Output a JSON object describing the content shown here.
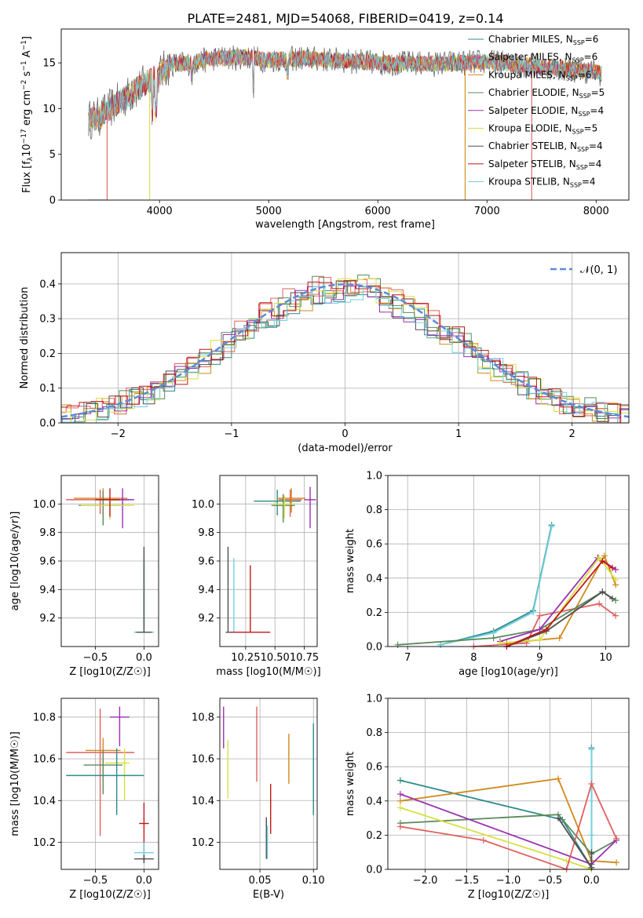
{
  "figure": {
    "title": "PLATE=2481, MJD=54068, FIBERID=0419, z=0.14"
  },
  "models": [
    {
      "name": "Chabrier MILES, N",
      "sub": "SSP",
      "tail": "=6",
      "color": "#2e8b8b"
    },
    {
      "name": "Salpeter MILES, N",
      "sub": "SSP",
      "tail": "=6",
      "color": "#e06060"
    },
    {
      "name": "Kroupa MILES, N",
      "sub": "SSP",
      "tail": "=6",
      "color": "#d08a1a"
    },
    {
      "name": "Chabrier ELODIE, N",
      "sub": "SSP",
      "tail": "=5",
      "color": "#5a8a5a"
    },
    {
      "name": "Salpeter ELODIE, N",
      "sub": "SSP",
      "tail": "=4",
      "color": "#9a30b0"
    },
    {
      "name": "Kroupa ELODIE, N",
      "sub": "SSP",
      "tail": "=5",
      "color": "#d8e040"
    },
    {
      "name": "Chabrier STELIB, N",
      "sub": "SSP",
      "tail": "=4",
      "color": "#505050"
    },
    {
      "name": "Salpeter STELIB, N",
      "sub": "SSP",
      "tail": "=4",
      "color": "#c01818"
    },
    {
      "name": "Kroupa STELIB, N",
      "sub": "SSP",
      "tail": "=4",
      "color": "#70d0e0"
    }
  ],
  "chart_data": [
    {
      "id": "spectrum",
      "type": "line",
      "title": "PLATE=2481, MJD=54068, FIBERID=0419, z=0.14",
      "xlabel": "wavelength [Angstrom, rest frame]",
      "ylabel": "Flux [f_λ 10^-17 erg cm^-2 s^-1 A^-1]",
      "xlim": [
        3100,
        8300
      ],
      "ylim": [
        0,
        18.7
      ],
      "xticks": [
        "4000",
        "5000",
        "6000",
        "7000",
        "8000"
      ],
      "yticks": [
        "0",
        "5",
        "10",
        "15"
      ],
      "continuum": {
        "x": [
          3350,
          3450,
          3600,
          3700,
          3800,
          3900,
          4000,
          4100,
          4300,
          4500,
          4800,
          5000,
          5300,
          5600,
          6000,
          6500,
          7000,
          7500,
          8000,
          8050
        ],
        "y": [
          8.8,
          9.1,
          10.5,
          11.3,
          12.2,
          13.0,
          13.8,
          14.8,
          15.0,
          15.5,
          15.6,
          15.3,
          15.5,
          15.3,
          15.0,
          14.9,
          15.1,
          14.6,
          14.0,
          13.8
        ]
      },
      "drops": [
        {
          "model": 1,
          "x": 3520
        },
        {
          "model": 5,
          "x": 3910
        },
        {
          "model": 2,
          "x": 6800
        },
        {
          "model": 1,
          "x": 7410
        }
      ]
    },
    {
      "id": "residuals",
      "type": "histogram",
      "xlabel": "(data-model)/error",
      "ylabel": "Normed distribution",
      "xlim": [
        -2.5,
        2.5
      ],
      "ylim": [
        0,
        0.49
      ],
      "xticks": [
        "−2",
        "−1",
        "0",
        "1",
        "2"
      ],
      "yticks": [
        "0.0",
        "0.1",
        "0.2",
        "0.3",
        "0.4"
      ],
      "gaussian_label": "𝒩(0, 1)",
      "gaussian_color": "#5b8bd8"
    },
    {
      "id": "age-Z",
      "type": "errorbar",
      "xlabel": "Z [log10(Z/Z☉)]",
      "ylabel": "age  [log10(age/yr)]",
      "xlim": [
        -0.85,
        0.15
      ],
      "ylim": [
        9.0,
        10.2
      ],
      "xticks": [
        {
          "v": -0.5,
          "t": "−0.5"
        },
        {
          "v": 0.0,
          "t": "0.0"
        }
      ],
      "yticks": [
        {
          "v": 9.2,
          "t": "9.2"
        },
        {
          "v": 9.4,
          "t": "9.4"
        },
        {
          "v": 9.6,
          "t": "9.6"
        },
        {
          "v": 9.8,
          "t": "9.8"
        },
        {
          "v": 10.0,
          "t": "10.0"
        }
      ],
      "points": [
        {
          "model": 0,
          "x": 0.0,
          "y": 9.1,
          "xerr": [
            0.1,
            0.1
          ],
          "yerr": [
            0.0,
            0.5
          ]
        },
        {
          "model": 8,
          "x": 0.0,
          "y": 9.1,
          "xerr": [
            0.1,
            0.1
          ],
          "yerr": [
            0.0,
            0.55
          ]
        },
        {
          "model": 6,
          "x": 0.0,
          "y": 9.1,
          "xerr": [
            0.08,
            0.08
          ],
          "yerr": [
            0.0,
            0.6
          ]
        },
        {
          "model": 1,
          "x": -0.45,
          "y": 10.03,
          "xerr": [
            0.35,
            0.3
          ],
          "yerr": [
            0.1,
            0.07
          ]
        },
        {
          "model": 2,
          "x": -0.42,
          "y": 10.04,
          "xerr": [
            0.3,
            0.25
          ],
          "yerr": [
            0.12,
            0.07
          ]
        },
        {
          "model": 3,
          "x": -0.42,
          "y": 9.99,
          "xerr": [
            0.25,
            0.2
          ],
          "yerr": [
            0.14,
            0.1
          ]
        },
        {
          "model": 4,
          "x": -0.22,
          "y": 10.03,
          "xerr": [
            0.12,
            0.12
          ],
          "yerr": [
            0.2,
            0.08
          ]
        },
        {
          "model": 5,
          "x": -0.35,
          "y": 9.99,
          "xerr": [
            0.3,
            0.25
          ],
          "yerr": [
            0.1,
            0.06
          ]
        },
        {
          "model": 7,
          "x": -0.35,
          "y": 10.03,
          "xerr": [
            0.15,
            0.1
          ],
          "yerr": [
            0.12,
            0.08
          ]
        }
      ]
    },
    {
      "id": "age-mass",
      "type": "errorbar",
      "xlabel": "mass [log10(M/M☉)]",
      "ylabel": "",
      "xlim": [
        0.03,
        0.86
      ],
      "ylim": [
        9.0,
        10.2
      ],
      "xticks": [
        {
          "v": 0.25,
          "t": "10.25"
        },
        {
          "v": 0.5,
          "t": "10.50"
        },
        {
          "v": 0.75,
          "t": "10.75"
        }
      ],
      "yticks": [
        {
          "v": 9.2,
          "t": "9.2"
        },
        {
          "v": 9.4,
          "t": "9.4"
        },
        {
          "v": 9.6,
          "t": "9.6"
        },
        {
          "v": 9.8,
          "t": "9.8"
        },
        {
          "v": 10.0,
          "t": "10.0"
        }
      ],
      "points": [
        {
          "model": 6,
          "x": 0.1,
          "y": 9.1,
          "xerr": [
            0.02,
            0.02
          ],
          "yerr": [
            0.0,
            0.6
          ]
        },
        {
          "model": 8,
          "x": 0.15,
          "y": 9.1,
          "xerr": [
            0.03,
            0.03
          ],
          "yerr": [
            0.0,
            0.52
          ]
        },
        {
          "model": 7,
          "x": 0.29,
          "y": 9.1,
          "xerr": [
            0.17,
            0.17
          ],
          "yerr": [
            0.0,
            0.47
          ]
        },
        {
          "model": 0,
          "x": 0.52,
          "y": 10.02,
          "xerr": [
            0.2,
            0.2
          ],
          "yerr": [
            0.1,
            0.08
          ]
        },
        {
          "model": 1,
          "x": 0.63,
          "y": 10.03,
          "xerr": [
            0.1,
            0.1
          ],
          "yerr": [
            0.12,
            0.07
          ]
        },
        {
          "model": 2,
          "x": 0.64,
          "y": 10.04,
          "xerr": [
            0.12,
            0.12
          ],
          "yerr": [
            0.1,
            0.07
          ]
        },
        {
          "model": 3,
          "x": 0.57,
          "y": 9.99,
          "xerr": [
            0.1,
            0.1
          ],
          "yerr": [
            0.12,
            0.08
          ]
        },
        {
          "model": 4,
          "x": 0.8,
          "y": 10.03,
          "xerr": [
            0.05,
            0.05
          ],
          "yerr": [
            0.2,
            0.09
          ]
        },
        {
          "model": 5,
          "x": 0.58,
          "y": 10.0,
          "xerr": [
            0.1,
            0.1
          ],
          "yerr": [
            0.1,
            0.06
          ]
        }
      ]
    },
    {
      "id": "weight-age",
      "type": "line",
      "xlabel": "age  [log10(age/yr)]",
      "ylabel": "mass weight",
      "xlim": [
        6.7,
        10.35
      ],
      "ylim": [
        0,
        1
      ],
      "xticks": [
        {
          "v": 7,
          "t": "7"
        },
        {
          "v": 8,
          "t": "8"
        },
        {
          "v": 9,
          "t": "9"
        },
        {
          "v": 10,
          "t": "10"
        }
      ],
      "yticks": [
        {
          "v": 0,
          "t": "0.0"
        },
        {
          "v": 0.2,
          "t": "0.2"
        },
        {
          "v": 0.4,
          "t": "0.4"
        },
        {
          "v": 0.6,
          "t": "0.6"
        },
        {
          "v": 0.8,
          "t": "0.8"
        },
        {
          "v": 1,
          "t": "1.0"
        }
      ],
      "series": [
        {
          "model": 0,
          "x": [
            7.5,
            8.3,
            8.9,
            9.18
          ],
          "y": [
            0.01,
            0.09,
            0.21,
            0.71
          ]
        },
        {
          "model": 8,
          "x": [
            7.5,
            8.3,
            8.9,
            9.18
          ],
          "y": [
            0.01,
            0.08,
            0.2,
            0.7
          ]
        },
        {
          "model": 1,
          "x": [
            8.0,
            8.8,
            9.0,
            9.9,
            10.15
          ],
          "y": [
            0.0,
            0.02,
            0.18,
            0.25,
            0.18
          ]
        },
        {
          "model": 2,
          "x": [
            8.5,
            9.3,
            9.98,
            10.15
          ],
          "y": [
            0.02,
            0.05,
            0.53,
            0.36
          ]
        },
        {
          "model": 3,
          "x": [
            6.85,
            8.3,
            9.0,
            9.95,
            10.15
          ],
          "y": [
            0.01,
            0.05,
            0.1,
            0.32,
            0.27
          ]
        },
        {
          "model": 4,
          "x": [
            8.4,
            9.0,
            9.88,
            10.15
          ],
          "y": [
            0.03,
            0.1,
            0.52,
            0.45
          ]
        },
        {
          "model": 5,
          "x": [
            8.4,
            9.0,
            9.9,
            10.15
          ],
          "y": [
            0.02,
            0.04,
            0.52,
            0.39
          ]
        },
        {
          "model": 6,
          "x": [
            8.5,
            9.1,
            9.95,
            10.1
          ],
          "y": [
            0.0,
            0.09,
            0.32,
            0.28
          ]
        },
        {
          "model": 7,
          "x": [
            8.5,
            9.1,
            9.95,
            10.1
          ],
          "y": [
            0.0,
            0.1,
            0.5,
            0.46
          ]
        }
      ]
    },
    {
      "id": "mass-Z",
      "type": "errorbar",
      "xlabel": "Z [log10(Z/Z☉)]",
      "ylabel": "mass [log10(M/M☉)]",
      "xlim": [
        -0.85,
        0.15
      ],
      "ylim": [
        10.07,
        10.89
      ],
      "xticks": [
        {
          "v": -0.5,
          "t": "−0.5"
        },
        {
          "v": 0.0,
          "t": "0.0"
        }
      ],
      "yticks": [
        {
          "v": 10.2,
          "t": "10.2"
        },
        {
          "v": 10.4,
          "t": "10.4"
        },
        {
          "v": 10.6,
          "t": "10.6"
        },
        {
          "v": 10.8,
          "t": "10.8"
        }
      ],
      "points": [
        {
          "model": 4,
          "x": -0.25,
          "y": 10.8,
          "xerr": [
            0.1,
            0.1
          ],
          "yerr": [
            0.14,
            0.05
          ]
        },
        {
          "model": 1,
          "x": -0.45,
          "y": 10.63,
          "xerr": [
            0.35,
            0.35
          ],
          "yerr": [
            0.4,
            0.21
          ]
        },
        {
          "model": 2,
          "x": -0.42,
          "y": 10.64,
          "xerr": [
            0.18,
            0.18
          ],
          "yerr": [
            0.15,
            0.06
          ]
        },
        {
          "model": 3,
          "x": -0.42,
          "y": 10.57,
          "xerr": [
            0.2,
            0.2
          ],
          "yerr": [
            0.14,
            0.07
          ]
        },
        {
          "model": 5,
          "x": -0.2,
          "y": 10.58,
          "xerr": [
            0.2,
            0.05
          ],
          "yerr": [
            0.18,
            0.07
          ]
        },
        {
          "model": 0,
          "x": -0.4,
          "y": 10.52,
          "xerr": [
            0.4,
            0.4
          ],
          "yerr": [
            0.0,
            0.0
          ]
        },
        {
          "model": 0,
          "x": -0.28,
          "y": 10.55,
          "xerr": [
            0.0,
            0.0
          ],
          "yerr": [
            0.22,
            0.1
          ]
        },
        {
          "model": 7,
          "x": 0.0,
          "y": 10.29,
          "xerr": [
            0.05,
            0.05
          ],
          "yerr": [
            0.18,
            0.1
          ]
        },
        {
          "model": 8,
          "x": 0.0,
          "y": 10.15,
          "xerr": [
            0.1,
            0.1
          ],
          "yerr": [
            0.05,
            0.05
          ]
        },
        {
          "model": 6,
          "x": 0.0,
          "y": 10.12,
          "xerr": [
            0.1,
            0.1
          ],
          "yerr": [
            0.02,
            0.02
          ]
        }
      ]
    },
    {
      "id": "mass-EBV",
      "type": "errorbar",
      "xlabel": "E(B-V)",
      "ylabel": "",
      "xlim": [
        0.0125,
        0.1035
      ],
      "ylim": [
        10.07,
        10.89
      ],
      "xticks": [
        {
          "v": 0.05,
          "t": "0.05"
        },
        {
          "v": 0.1,
          "t": "0.10"
        }
      ],
      "yticks": [
        {
          "v": 10.2,
          "t": "10.2"
        },
        {
          "v": 10.4,
          "t": "10.4"
        },
        {
          "v": 10.6,
          "t": "10.6"
        },
        {
          "v": 10.8,
          "t": "10.8"
        }
      ],
      "points": [
        {
          "model": 4,
          "x": 0.016,
          "y": 10.75,
          "xerr": [
            0,
            0
          ],
          "yerr": [
            0.1,
            0.1
          ]
        },
        {
          "model": 5,
          "x": 0.02,
          "y": 10.55,
          "xerr": [
            0,
            0
          ],
          "yerr": [
            0.14,
            0.14
          ]
        },
        {
          "model": 1,
          "x": 0.047,
          "y": 10.67,
          "xerr": [
            0,
            0
          ],
          "yerr": [
            0.18,
            0.18
          ]
        },
        {
          "model": 6,
          "x": 0.056,
          "y": 10.22,
          "xerr": [
            0,
            0
          ],
          "yerr": [
            0.1,
            0.1
          ]
        },
        {
          "model": 8,
          "x": 0.057,
          "y": 10.2,
          "xerr": [
            0,
            0
          ],
          "yerr": [
            0.08,
            0.08
          ]
        },
        {
          "model": 7,
          "x": 0.06,
          "y": 10.36,
          "xerr": [
            0,
            0
          ],
          "yerr": [
            0.12,
            0.12
          ]
        },
        {
          "model": 2,
          "x": 0.077,
          "y": 10.6,
          "xerr": [
            0,
            0
          ],
          "yerr": [
            0.12,
            0.12
          ]
        },
        {
          "model": 0,
          "x": 0.1,
          "y": 10.55,
          "xerr": [
            0,
            0
          ],
          "yerr": [
            0.22,
            0.22
          ]
        }
      ]
    },
    {
      "id": "weight-Z",
      "type": "line",
      "xlabel": "Z [log10(Z/Z☉)]",
      "ylabel": "mass weight",
      "xlim": [
        -2.45,
        0.45
      ],
      "ylim": [
        0,
        1
      ],
      "xticks": [
        {
          "v": -2.0,
          "t": "−2.0"
        },
        {
          "v": -1.5,
          "t": "−1.5"
        },
        {
          "v": -1.0,
          "t": "−1.0"
        },
        {
          "v": -0.5,
          "t": "−0.5"
        },
        {
          "v": 0.0,
          "t": "0.0"
        }
      ],
      "yticks": [
        {
          "v": 0,
          "t": "0.0"
        },
        {
          "v": 0.2,
          "t": "0.2"
        },
        {
          "v": 0.4,
          "t": "0.4"
        },
        {
          "v": 0.6,
          "t": "0.6"
        },
        {
          "v": 0.8,
          "t": "0.8"
        },
        {
          "v": 1,
          "t": "1.0"
        }
      ],
      "series": [
        {
          "model": 0,
          "x": [
            -2.3,
            -0.35,
            0.0,
            0.0
          ],
          "y": [
            0.52,
            0.29,
            0.01,
            0.71
          ]
        },
        {
          "model": 8,
          "x": [
            0.0,
            0.0,
            0.0
          ],
          "y": [
            0.0,
            0.2,
            0.7
          ]
        },
        {
          "model": 2,
          "x": [
            -2.3,
            -0.4,
            0.0,
            0.3
          ],
          "y": [
            0.4,
            0.53,
            0.05,
            0.04
          ]
        },
        {
          "model": 3,
          "x": [
            -2.3,
            -0.4,
            0.0,
            0.3
          ],
          "y": [
            0.27,
            0.32,
            0.09,
            0.17
          ]
        },
        {
          "model": 4,
          "x": [
            -2.3,
            0.0,
            0.3
          ],
          "y": [
            0.44,
            0.03,
            0.17
          ]
        },
        {
          "model": 5,
          "x": [
            -2.3,
            -0.3,
            0.0
          ],
          "y": [
            0.36,
            0.05,
            0.0
          ]
        },
        {
          "model": 1,
          "x": [
            -2.3,
            -1.3,
            -0.3,
            0.0,
            0.3
          ],
          "y": [
            0.25,
            0.17,
            0.0,
            0.5,
            0.18
          ]
        },
        {
          "model": 6,
          "x": [
            -0.4,
            0.0,
            0.0
          ],
          "y": [
            0.3,
            0.01,
            0.1
          ]
        }
      ]
    }
  ]
}
